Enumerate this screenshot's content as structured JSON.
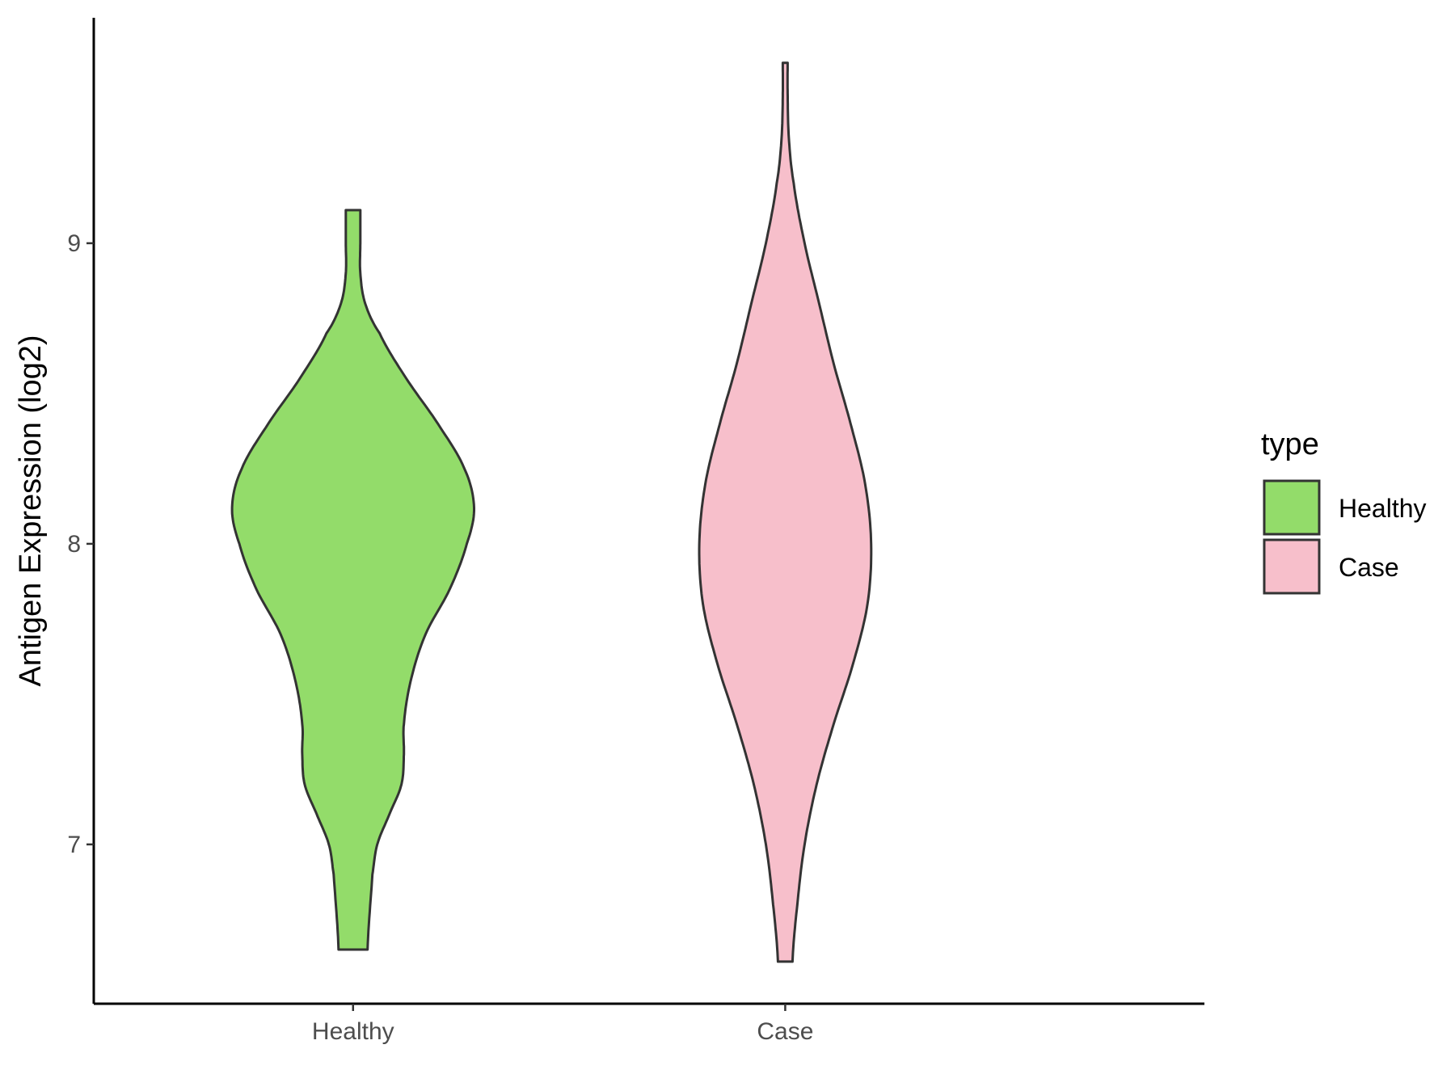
{
  "chart_data": {
    "type": "violin",
    "ylabel": "Antigen Expression (log2)",
    "xlabel": "",
    "categories": [
      "Healthy",
      "Case"
    ],
    "y_ticks": [
      7,
      8,
      9
    ],
    "ylim": [
      6.47,
      9.75
    ],
    "grid": false,
    "legend": {
      "title": "type",
      "position": "right",
      "entries": [
        {
          "label": "Healthy",
          "color": "#93DC6A"
        },
        {
          "label": "Case",
          "color": "#F7BFCB"
        }
      ]
    },
    "series": [
      {
        "name": "Healthy",
        "color": "#93DC6A",
        "min": 6.65,
        "max": 9.11,
        "density": [
          [
            6.65,
            0.06
          ],
          [
            6.9,
            0.08
          ],
          [
            7.0,
            0.1
          ],
          [
            7.1,
            0.15
          ],
          [
            7.2,
            0.2
          ],
          [
            7.3,
            0.21
          ],
          [
            7.4,
            0.21
          ],
          [
            7.55,
            0.24
          ],
          [
            7.7,
            0.3
          ],
          [
            7.85,
            0.4
          ],
          [
            8.0,
            0.47
          ],
          [
            8.12,
            0.5
          ],
          [
            8.25,
            0.46
          ],
          [
            8.4,
            0.35
          ],
          [
            8.55,
            0.22
          ],
          [
            8.7,
            0.11
          ],
          [
            8.8,
            0.05
          ],
          [
            8.9,
            0.03
          ],
          [
            9.0,
            0.03
          ],
          [
            9.11,
            0.03
          ]
        ]
      },
      {
        "name": "Case",
        "color": "#F7BFCB",
        "min": 6.61,
        "max": 9.6,
        "density": [
          [
            6.61,
            0.03
          ],
          [
            6.8,
            0.05
          ],
          [
            7.0,
            0.08
          ],
          [
            7.2,
            0.13
          ],
          [
            7.4,
            0.2
          ],
          [
            7.6,
            0.28
          ],
          [
            7.8,
            0.34
          ],
          [
            8.0,
            0.355
          ],
          [
            8.2,
            0.33
          ],
          [
            8.4,
            0.27
          ],
          [
            8.6,
            0.2
          ],
          [
            8.8,
            0.14
          ],
          [
            9.0,
            0.08
          ],
          [
            9.2,
            0.035
          ],
          [
            9.35,
            0.015
          ],
          [
            9.5,
            0.01
          ],
          [
            9.6,
            0.01
          ]
        ]
      }
    ]
  }
}
